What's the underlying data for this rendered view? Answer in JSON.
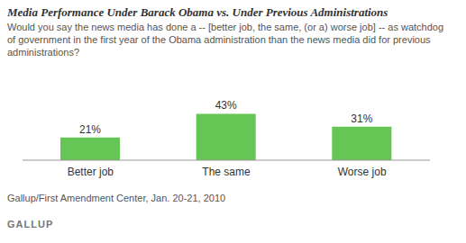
{
  "chart_data": {
    "type": "bar",
    "title": "Media Performance Under Barack Obama vs. Under Previous Administrations",
    "subtitle": "Would you say the news media has done a -- [better job, the same, (or a) worse job] -- as watchdog of government in the first year of the Obama administration than the news media did for previous administrations?",
    "categories": [
      "Better job",
      "The same",
      "Worse job"
    ],
    "values": [
      21,
      43,
      31
    ],
    "value_labels": [
      "21%",
      "43%",
      "31%"
    ],
    "color": "#66c655",
    "ylim": [
      0,
      50
    ],
    "grid": false,
    "data_labels": true,
    "tick_labels": "x",
    "annotations": [
      "Gallup/First Amendment Center, Jan. 20-21, 2010",
      "GALLUP"
    ]
  }
}
